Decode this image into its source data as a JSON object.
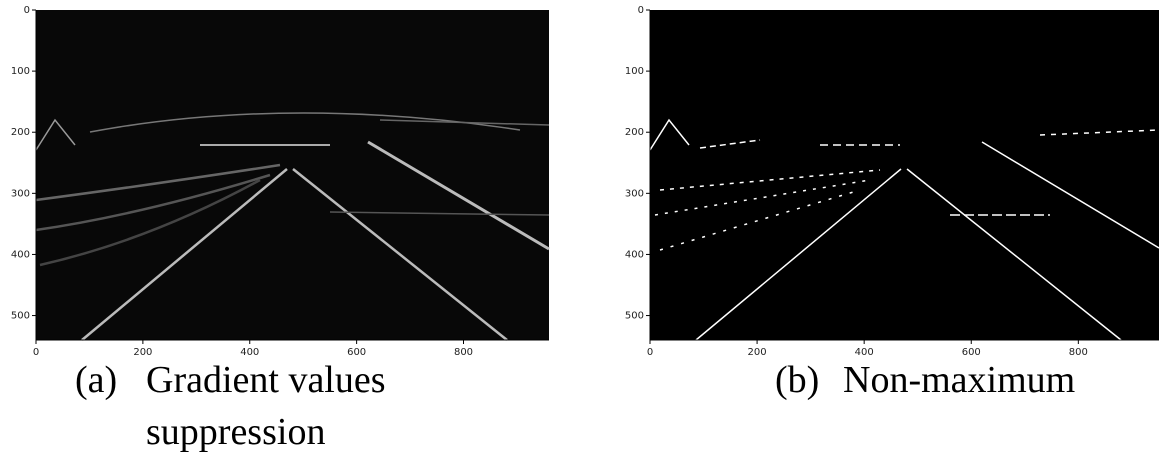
{
  "panels": [
    {
      "xlim": [
        0,
        960
      ],
      "ylim": [
        540,
        0
      ],
      "xticks": [
        0,
        200,
        400,
        600,
        800
      ],
      "yticks": [
        0,
        100,
        200,
        300,
        400,
        500
      ],
      "caption": {
        "label": "(a)",
        "lines": [
          "Gradient values",
          "suppression"
        ]
      }
    },
    {
      "xlim": [
        0,
        960
      ],
      "ylim": [
        540,
        0
      ],
      "xticks": [
        0,
        200,
        400,
        600,
        800
      ],
      "yticks": [
        0,
        100,
        200,
        300,
        400,
        500
      ],
      "caption": {
        "label": "(b)",
        "lines": [
          "Non-maximum"
        ]
      }
    }
  ]
}
